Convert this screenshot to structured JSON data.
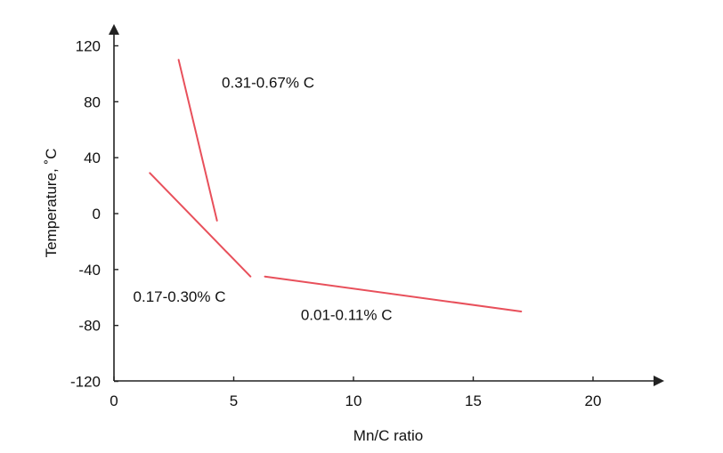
{
  "chart_data": {
    "type": "line",
    "title": "",
    "xlabel": "Mn/C ratio",
    "ylabel": "Temperature, ˚C",
    "xlim": [
      0,
      22
    ],
    "ylim": [
      -120,
      130
    ],
    "x_ticks": [
      0,
      5,
      10,
      15,
      20
    ],
    "y_ticks": [
      -120,
      -80,
      -40,
      0,
      40,
      80,
      120
    ],
    "grid": false,
    "legend": "none",
    "line_color": "#e8505b",
    "series": [
      {
        "name": "0.31-0.67% C",
        "x": [
          2.7,
          4.3
        ],
        "y": [
          110,
          -5
        ]
      },
      {
        "name": "0.17-0.30% C",
        "x": [
          1.5,
          5.7
        ],
        "y": [
          29,
          -45
        ]
      },
      {
        "name": "0.01-0.11% C",
        "x": [
          6.3,
          17
        ],
        "y": [
          -45,
          -70
        ]
      }
    ],
    "annotations": [
      {
        "text": "0.31-0.67% C",
        "x": 4.5,
        "y": 90
      },
      {
        "text": "0.17-0.30% C",
        "x": 0.8,
        "y": -63
      },
      {
        "text": "0.01-0.11% C",
        "x": 7.8,
        "y": -76
      }
    ]
  }
}
